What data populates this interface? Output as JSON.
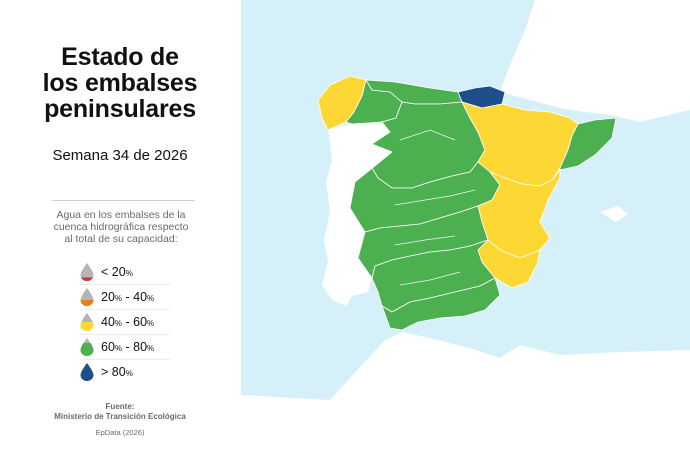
{
  "title": {
    "lines": [
      "Estado de",
      "los embalses",
      "peninsulares"
    ]
  },
  "subtitle": "Semana 34 de 2026",
  "legend": {
    "description_lines": [
      "Agua en los embalses de la",
      "cuenca hidrográfica respecto",
      "al total de su capacidad:"
    ],
    "items": [
      {
        "prefix": "< 20",
        "unit": "%",
        "sep": "",
        "upper": "",
        "unit2": "",
        "color": "#c0392b"
      },
      {
        "prefix": "20",
        "unit": "%",
        "sep": " - 40",
        "upper": "",
        "unit2": "%",
        "color": "#e67e22"
      },
      {
        "prefix": "40",
        "unit": "%",
        "sep": " - 60",
        "upper": "",
        "unit2": "%",
        "color": "#fdd835"
      },
      {
        "prefix": "60",
        "unit": "%",
        "sep": " - 80",
        "upper": "",
        "unit2": "%",
        "color": "#4caf50"
      },
      {
        "prefix": "> 80",
        "unit": "%",
        "sep": "",
        "upper": "",
        "unit2": "",
        "color": "#1f4e8c"
      }
    ]
  },
  "source": {
    "label": "Fuente:",
    "name": "Ministerio de Transición Ecológica"
  },
  "credit": "EpData (2026)",
  "map": {
    "sea_color": "#d5f0f8",
    "land_color": "#ffffff",
    "basin_colors": {
      "green": "#4caf50",
      "yellow": "#fdd835",
      "blue": "#1f4e8c"
    },
    "basins": [
      {
        "id": "galicia-costa",
        "level_range": "40-60"
      },
      {
        "id": "cantabrico-occidental",
        "level_range": "60-80"
      },
      {
        "id": "cantabrico-oriental",
        "level_range": ">80"
      },
      {
        "id": "ebro",
        "level_range": "40-60"
      },
      {
        "id": "catalunya",
        "level_range": "60-80"
      },
      {
        "id": "mino-sil",
        "level_range": "60-80"
      },
      {
        "id": "duero",
        "level_range": "60-80"
      },
      {
        "id": "tajo",
        "level_range": "60-80"
      },
      {
        "id": "guadiana",
        "level_range": "60-80"
      },
      {
        "id": "guadalquivir",
        "level_range": "60-80"
      },
      {
        "id": "jucar",
        "level_range": "40-60"
      },
      {
        "id": "segura",
        "level_range": "40-60"
      },
      {
        "id": "sur",
        "level_range": "60-80"
      }
    ]
  }
}
